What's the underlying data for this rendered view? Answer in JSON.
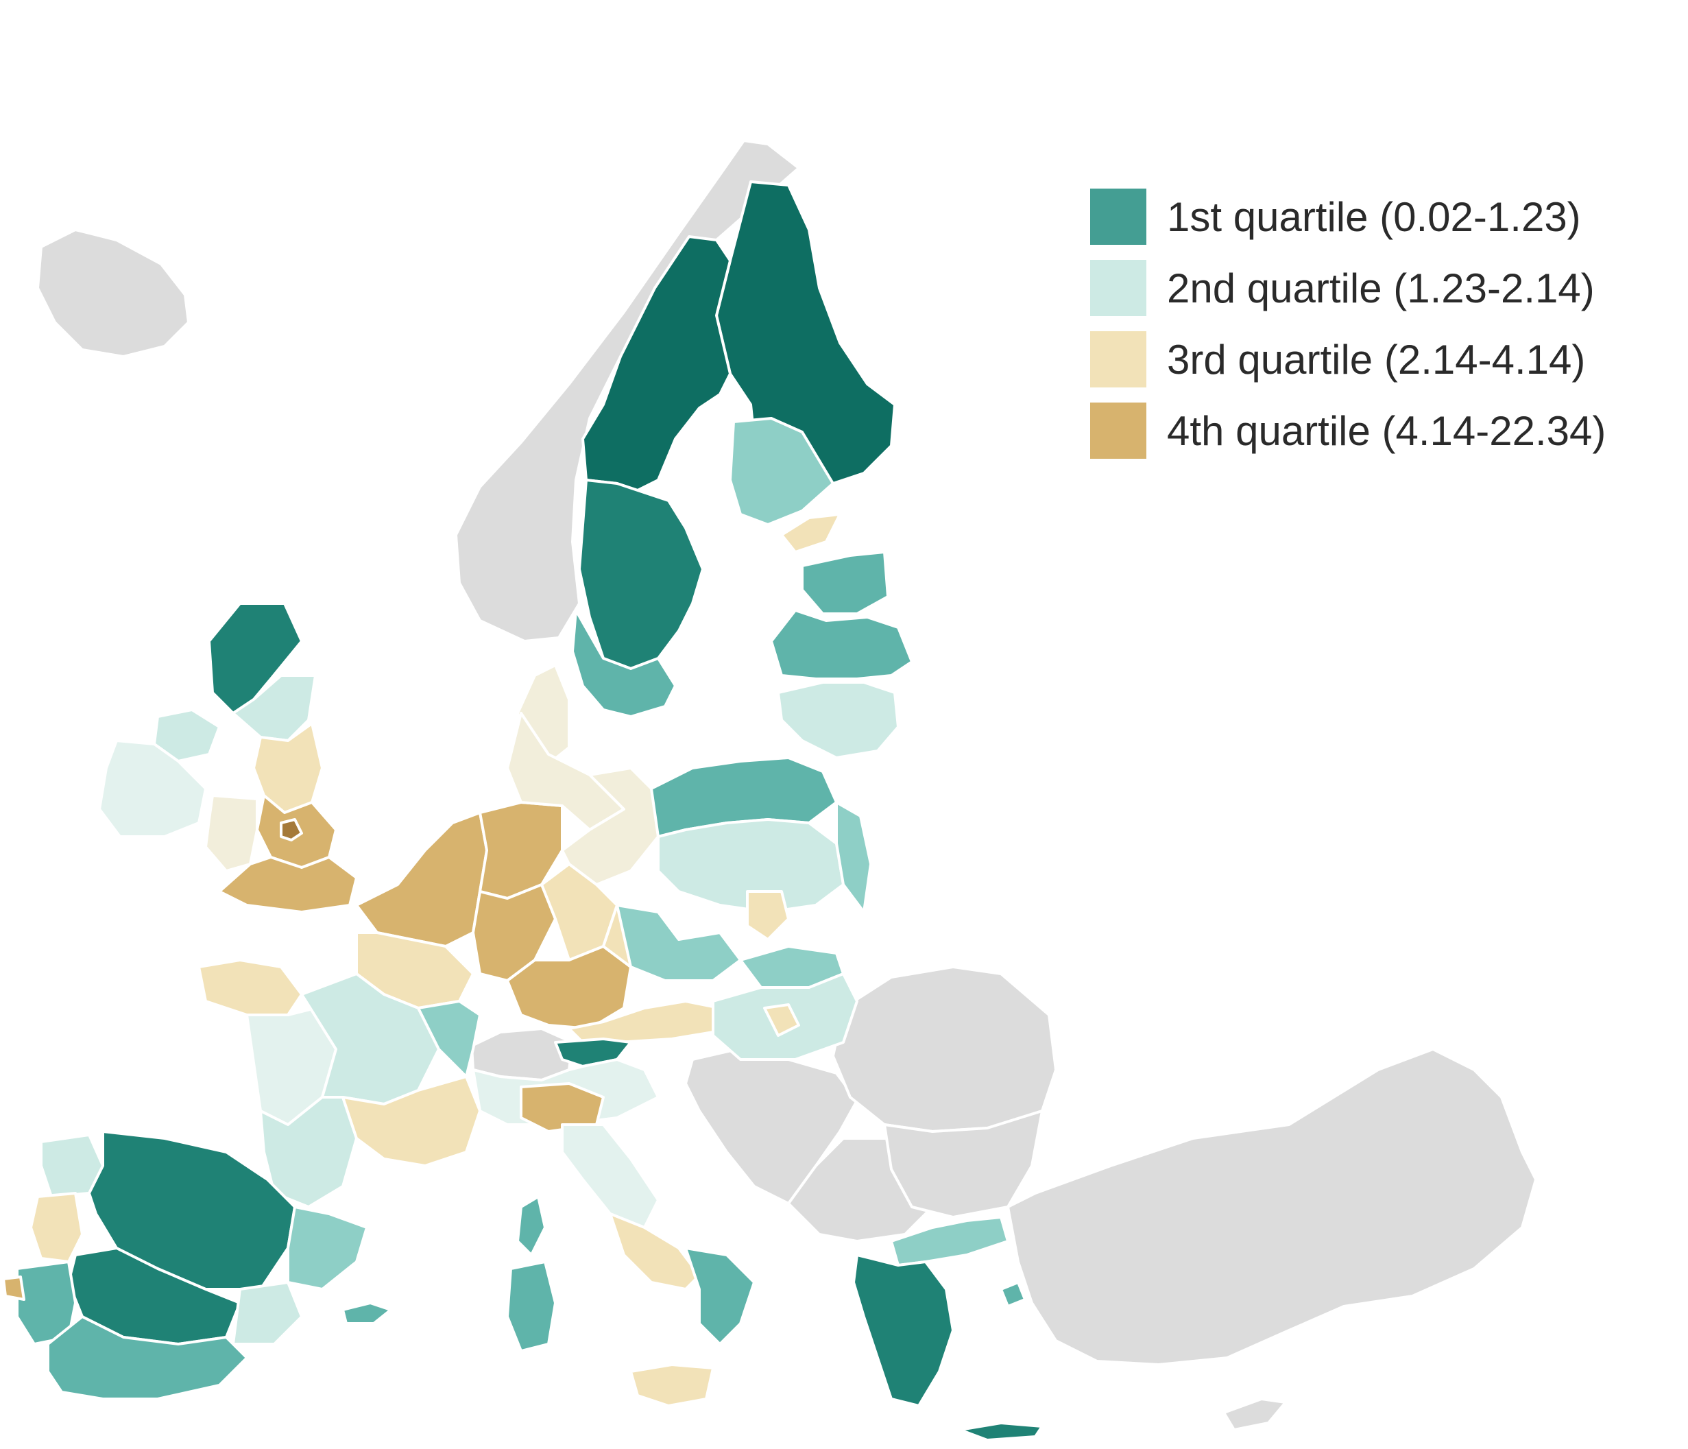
{
  "legend": {
    "items": [
      {
        "label": "1st quartile (0.02-1.23)",
        "color": "#449e93"
      },
      {
        "label": "2nd quartile (1.23-2.14)",
        "color": "#cdeae4"
      },
      {
        "label": "3rd quartile (2.14-4.14)",
        "color": "#f2e2b8"
      },
      {
        "label": "4th quartile (4.14-22.34)",
        "color": "#d7b36e"
      }
    ]
  },
  "palette": {
    "no_data": "#dcdcdc",
    "q1_dark": "#0e6e62",
    "q1_mid": "#1f8275",
    "q1_light": "#5fb4aa",
    "q2_strong": "#8ecfc6",
    "q2": "#cdeae4",
    "q2_faint": "#e3f2ee",
    "q3_faint": "#f2eedb",
    "q3": "#f2e2b8",
    "q4": "#d7b36e",
    "q4_deep": "#a57a3a"
  }
}
